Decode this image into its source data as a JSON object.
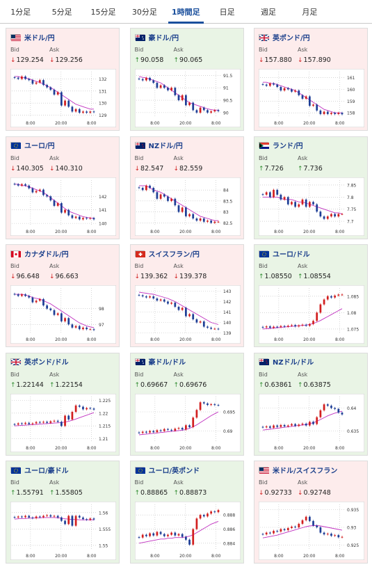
{
  "tabs": [
    {
      "label": "1分足",
      "active": false
    },
    {
      "label": "5分足",
      "active": false
    },
    {
      "label": "15分足",
      "active": false
    },
    {
      "label": "30分足",
      "active": false
    },
    {
      "label": "1時間足",
      "active": true
    },
    {
      "label": "日足",
      "active": false
    },
    {
      "label": "週足",
      "active": false
    },
    {
      "label": "月足",
      "active": false
    }
  ],
  "labels": {
    "bid": "Bid",
    "ask": "Ask"
  },
  "colors": {
    "down_bg": "#fdecec",
    "up_bg": "#e9f4e5",
    "candle_up": "#d21f1f",
    "candle_down": "#1e3e96",
    "ma": "#c030c0",
    "trend_down": "#d21f1f",
    "trend_up": "#2e8b2e"
  },
  "cards": [
    {
      "name": "米ドル/円",
      "flag": "us",
      "trend": "down",
      "bid": "129.254",
      "ask": "129.256",
      "chart_data": {
        "type": "candlestick",
        "yticks": [
          "132",
          "131",
          "130",
          "129"
        ],
        "ylim": [
          128.8,
          132.6
        ],
        "xticks": [
          "8:00",
          "20:00",
          "8:00"
        ],
        "series": [
          132.1,
          132.0,
          132.2,
          132.0,
          131.9,
          131.6,
          131.7,
          131.9,
          131.5,
          131.3,
          131.1,
          130.7,
          130.9,
          129.8,
          130.2,
          129.7,
          129.3,
          129.5,
          129.2,
          129.3,
          129.2,
          129.3,
          129.25
        ],
        "ma": [
          132.2,
          132.2,
          132.1,
          132.1,
          132.0,
          131.9,
          131.8,
          131.7,
          131.6,
          131.4,
          131.3,
          131.1,
          130.9,
          130.7,
          130.5,
          130.3,
          130.1,
          129.9,
          129.8,
          129.7,
          129.6,
          129.5,
          129.5
        ]
      }
    },
    {
      "name": "豪ドル/円",
      "flag": "au",
      "trend": "up",
      "bid": "90.058",
      "ask": "90.065",
      "chart_data": {
        "type": "candlestick",
        "yticks": [
          "91.5",
          "91",
          "90.5",
          "90"
        ],
        "ylim": [
          89.8,
          91.65
        ],
        "xticks": [
          "8:00",
          "20:00",
          "8:00"
        ],
        "series": [
          91.35,
          91.3,
          91.4,
          91.3,
          91.2,
          91.0,
          91.1,
          91.0,
          90.9,
          91.0,
          90.7,
          90.5,
          90.7,
          90.3,
          90.4,
          90.1,
          90.0,
          90.2,
          90.1,
          90.0,
          90.05,
          90.1,
          90.06
        ],
        "ma": [
          91.45,
          91.42,
          91.4,
          91.35,
          91.3,
          91.25,
          91.2,
          91.1,
          91.0,
          90.9,
          90.8,
          90.7,
          90.6,
          90.5,
          90.4,
          90.35,
          90.3,
          90.25,
          90.2,
          90.15,
          90.12,
          90.1,
          90.1
        ]
      }
    },
    {
      "name": "英ポンド/円",
      "flag": "gb",
      "trend": "down",
      "bid": "157.880",
      "ask": "157.890",
      "chart_data": {
        "type": "candlestick",
        "yticks": [
          "161",
          "160",
          "159",
          "158"
        ],
        "ylim": [
          157.6,
          161.5
        ],
        "xticks": [
          "8:00",
          "20:00",
          "8:00"
        ],
        "series": [
          160.4,
          160.3,
          160.5,
          160.4,
          160.2,
          159.9,
          160.1,
          160.0,
          159.8,
          159.9,
          159.5,
          159.2,
          159.4,
          158.6,
          158.7,
          158.2,
          157.9,
          158.1,
          157.9,
          158.0,
          157.9,
          158.0,
          157.88
        ],
        "ma": [
          160.6,
          160.6,
          160.5,
          160.5,
          160.4,
          160.3,
          160.2,
          160.1,
          160.0,
          159.9,
          159.7,
          159.5,
          159.3,
          159.1,
          158.9,
          158.7,
          158.5,
          158.3,
          158.2,
          158.1,
          158.0,
          158.0,
          158.0
        ]
      }
    },
    {
      "name": "ユーロ/円",
      "flag": "eu",
      "trend": "down",
      "bid": "140.305",
      "ask": "140.310",
      "chart_data": {
        "type": "candlestick",
        "yticks": [
          "142",
          "141",
          "140"
        ],
        "ylim": [
          139.8,
          143.2
        ],
        "xticks": [
          "8:00",
          "20:00",
          "8:00"
        ],
        "series": [
          142.9,
          142.8,
          142.9,
          142.8,
          142.6,
          142.3,
          142.4,
          142.5,
          142.1,
          142.0,
          141.7,
          141.3,
          141.5,
          140.8,
          141.0,
          140.6,
          140.4,
          140.5,
          140.3,
          140.4,
          140.35,
          140.4,
          140.3
        ],
        "ma": [
          142.9,
          142.9,
          142.8,
          142.8,
          142.7,
          142.6,
          142.5,
          142.4,
          142.3,
          142.1,
          141.9,
          141.7,
          141.5,
          141.3,
          141.1,
          140.9,
          140.8,
          140.7,
          140.6,
          140.5,
          140.45,
          140.4,
          140.4
        ]
      }
    },
    {
      "name": "NZドル/円",
      "flag": "nz",
      "trend": "down",
      "bid": "82.547",
      "ask": "82.559",
      "chart_data": {
        "type": "candlestick",
        "yticks": [
          "84",
          "83.5",
          "83",
          "82.5"
        ],
        "ylim": [
          82.35,
          84.45
        ],
        "xticks": [
          "8:00",
          "20:00",
          "8:00"
        ],
        "series": [
          84.1,
          84.0,
          84.2,
          84.1,
          83.9,
          83.6,
          83.8,
          83.7,
          83.5,
          83.6,
          83.3,
          83.0,
          83.2,
          82.8,
          82.9,
          82.7,
          82.6,
          82.7,
          82.55,
          82.6,
          82.5,
          82.55,
          82.55
        ],
        "ma": [
          84.2,
          84.2,
          84.2,
          84.1,
          84.0,
          83.95,
          83.9,
          83.8,
          83.7,
          83.6,
          83.5,
          83.4,
          83.3,
          83.2,
          83.1,
          83.0,
          82.9,
          82.8,
          82.75,
          82.7,
          82.65,
          82.6,
          82.6
        ]
      }
    },
    {
      "name": "ランド/円",
      "flag": "za",
      "trend": "up",
      "bid": "7.726",
      "ask": "7.736",
      "chart_data": {
        "type": "candlestick",
        "yticks": [
          "7.85",
          "7.8",
          "7.75",
          "7.7"
        ],
        "ylim": [
          7.68,
          7.87
        ],
        "xticks": [
          "8:00",
          "20:00",
          "8:00"
        ],
        "series": [
          7.81,
          7.82,
          7.8,
          7.83,
          7.81,
          7.79,
          7.8,
          7.77,
          7.78,
          7.76,
          7.77,
          7.79,
          7.76,
          7.78,
          7.77,
          7.74,
          7.72,
          7.71,
          7.72,
          7.73,
          7.72,
          7.73,
          7.73
        ],
        "ma": [
          7.8,
          7.8,
          7.8,
          7.8,
          7.8,
          7.795,
          7.79,
          7.79,
          7.79,
          7.785,
          7.78,
          7.78,
          7.775,
          7.77,
          7.765,
          7.76,
          7.755,
          7.75,
          7.745,
          7.74,
          7.735,
          7.735,
          7.73
        ]
      }
    },
    {
      "name": "カナダドル/円",
      "flag": "ca",
      "trend": "down",
      "bid": "96.648",
      "ask": "96.663",
      "chart_data": {
        "type": "candlestick",
        "yticks": [
          "98",
          "97"
        ],
        "ylim": [
          96.4,
          99.3
        ],
        "xticks": [
          "8:00",
          "20:00",
          "8:00"
        ],
        "series": [
          98.9,
          98.8,
          98.9,
          98.8,
          98.7,
          98.4,
          98.5,
          98.6,
          98.2,
          98.0,
          97.9,
          97.6,
          97.7,
          97.2,
          97.4,
          97.0,
          96.8,
          96.9,
          96.7,
          96.8,
          96.7,
          96.7,
          96.65
        ],
        "ma": [
          98.9,
          98.9,
          98.9,
          98.85,
          98.8,
          98.7,
          98.65,
          98.6,
          98.5,
          98.4,
          98.3,
          98.15,
          98.0,
          97.85,
          97.7,
          97.55,
          97.4,
          97.25,
          97.1,
          97.0,
          96.9,
          96.85,
          96.8
        ]
      }
    },
    {
      "name": "スイスフラン/円",
      "flag": "ch",
      "trend": "down",
      "bid": "139.362",
      "ask": "139.378",
      "chart_data": {
        "type": "candlestick",
        "yticks": [
          "143",
          "142",
          "141",
          "140",
          "139"
        ],
        "ylim": [
          138.9,
          143.3
        ],
        "xticks": [
          "8:00",
          "20:00",
          "8:00"
        ],
        "series": [
          142.6,
          142.5,
          142.4,
          142.5,
          142.3,
          142.1,
          142.2,
          142.0,
          141.8,
          141.9,
          141.5,
          141.2,
          141.4,
          140.6,
          140.8,
          140.3,
          140.0,
          140.1,
          139.6,
          139.5,
          139.4,
          139.4,
          139.36
        ],
        "ma": [
          142.9,
          142.85,
          142.8,
          142.75,
          142.7,
          142.6,
          142.5,
          142.4,
          142.3,
          142.15,
          142.0,
          141.8,
          141.6,
          141.4,
          141.2,
          141.0,
          140.8,
          140.6,
          140.4,
          140.2,
          140.0,
          139.9,
          139.8
        ]
      }
    },
    {
      "name": "ユーロ/ドル",
      "flag": "eu",
      "trend": "up",
      "bid": "1.08550",
      "ask": "1.08554",
      "chart_data": {
        "type": "candlestick",
        "yticks": [
          "1.085",
          "1.08",
          "1.075"
        ],
        "ylim": [
          1.0735,
          1.0875
        ],
        "xticks": [
          "8:00",
          "20:00",
          "8:00"
        ],
        "series": [
          1.0755,
          1.0758,
          1.0754,
          1.0757,
          1.0756,
          1.0759,
          1.0757,
          1.076,
          1.0762,
          1.0758,
          1.0761,
          1.0763,
          1.076,
          1.0765,
          1.0775,
          1.08,
          1.0825,
          1.084,
          1.085,
          1.0846,
          1.0852,
          1.0855,
          1.0855
        ],
        "ma": [
          1.075,
          1.0751,
          1.0752,
          1.0753,
          1.0754,
          1.0755,
          1.0756,
          1.0757,
          1.0758,
          1.0759,
          1.076,
          1.0761,
          1.0762,
          1.0764,
          1.0767,
          1.0771,
          1.0776,
          1.0782,
          1.0788,
          1.0794,
          1.08,
          1.0806,
          1.0812
        ]
      }
    },
    {
      "name": "英ポンド/ドル",
      "flag": "gb",
      "trend": "up",
      "bid": "1.22144",
      "ask": "1.22154",
      "chart_data": {
        "type": "candlestick",
        "yticks": [
          "1.225",
          "1.22",
          "1.215",
          "1.21"
        ],
        "ylim": [
          1.2085,
          1.2265
        ],
        "xticks": [
          "8:00",
          "20:00",
          "8:00"
        ],
        "series": [
          1.2155,
          1.216,
          1.2158,
          1.2162,
          1.2157,
          1.216,
          1.2165,
          1.2163,
          1.2166,
          1.2162,
          1.2168,
          1.217,
          1.2166,
          1.215,
          1.219,
          1.2175,
          1.2205,
          1.223,
          1.2225,
          1.2215,
          1.222,
          1.2218,
          1.2214
        ],
        "ma": [
          1.215,
          1.2151,
          1.2152,
          1.2153,
          1.2154,
          1.2155,
          1.2156,
          1.2157,
          1.2158,
          1.2159,
          1.216,
          1.2161,
          1.2162,
          1.2163,
          1.2165,
          1.2168,
          1.2172,
          1.2177,
          1.2182,
          1.2187,
          1.2192,
          1.2197,
          1.2202
        ]
      }
    },
    {
      "name": "豪ドル/ドル",
      "flag": "au",
      "trend": "up",
      "bid": "0.69667",
      "ask": "0.69676",
      "chart_data": {
        "type": "candlestick",
        "yticks": [
          "0.695",
          "0.69"
        ],
        "ylim": [
          0.687,
          0.699
        ],
        "xticks": [
          "8:00",
          "20:00",
          "8:00"
        ],
        "series": [
          0.6895,
          0.6898,
          0.6896,
          0.69,
          0.6897,
          0.6902,
          0.69,
          0.6905,
          0.6903,
          0.6901,
          0.6906,
          0.6908,
          0.6904,
          0.6915,
          0.691,
          0.6935,
          0.6955,
          0.6975,
          0.6972,
          0.6968,
          0.697,
          0.6968,
          0.6967
        ],
        "ma": [
          0.689,
          0.6891,
          0.6892,
          0.6893,
          0.6894,
          0.6895,
          0.6896,
          0.6897,
          0.6898,
          0.6899,
          0.69,
          0.6901,
          0.6902,
          0.6904,
          0.6907,
          0.6911,
          0.6916,
          0.6922,
          0.6928,
          0.6934,
          0.694,
          0.6945,
          0.695
        ]
      }
    },
    {
      "name": "NZドル/ドル",
      "flag": "nz",
      "trend": "up",
      "bid": "0.63861",
      "ask": "0.63875",
      "chart_data": {
        "type": "candlestick",
        "yticks": [
          "0.64",
          "0.635"
        ],
        "ylim": [
          0.6325,
          0.6425
        ],
        "xticks": [
          "8:00",
          "20:00",
          "8:00"
        ],
        "series": [
          0.6358,
          0.636,
          0.6357,
          0.6362,
          0.6359,
          0.6363,
          0.636,
          0.6362,
          0.6365,
          0.6361,
          0.6364,
          0.6366,
          0.6362,
          0.637,
          0.6365,
          0.638,
          0.6395,
          0.6408,
          0.6405,
          0.64,
          0.6398,
          0.639,
          0.6386
        ],
        "ma": [
          0.6352,
          0.6353,
          0.6354,
          0.6355,
          0.6356,
          0.6357,
          0.6358,
          0.6359,
          0.636,
          0.6361,
          0.6362,
          0.6363,
          0.6364,
          0.6366,
          0.6368,
          0.6371,
          0.6375,
          0.6379,
          0.6383,
          0.6386,
          0.6389,
          0.6391,
          0.6393
        ]
      }
    },
    {
      "name": "ユーロ/豪ドル",
      "flag": "eu",
      "trend": "up",
      "bid": "1.55791",
      "ask": "1.55805",
      "chart_data": {
        "type": "candlestick",
        "yticks": [
          "1.56",
          "1.555",
          "1.55"
        ],
        "ylim": [
          1.5485,
          1.5625
        ],
        "xticks": [
          "8:00",
          "20:00",
          "8:00"
        ],
        "series": [
          1.5585,
          1.5588,
          1.5586,
          1.559,
          1.5585,
          1.5583,
          1.5588,
          1.5586,
          1.559,
          1.5592,
          1.5588,
          1.559,
          1.5585,
          1.5575,
          1.5565,
          1.559,
          1.556,
          1.559,
          1.5585,
          1.558,
          1.5578,
          1.5582,
          1.5579
        ],
        "ma": [
          1.558,
          1.5581,
          1.5582,
          1.5582,
          1.5583,
          1.5583,
          1.5584,
          1.5584,
          1.5585,
          1.5585,
          1.5585,
          1.5585,
          1.5584,
          1.5583,
          1.5581,
          1.558,
          1.5579,
          1.5579,
          1.5578,
          1.5578,
          1.5578,
          1.5578,
          1.5578
        ]
      }
    },
    {
      "name": "ユーロ/英ポンド",
      "flag": "eu",
      "trend": "up",
      "bid": "0.88865",
      "ask": "0.88873",
      "chart_data": {
        "type": "candlestick",
        "yticks": [
          "0.888",
          "0.886",
          "0.884"
        ],
        "ylim": [
          0.883,
          0.8895
        ],
        "xticks": [
          "8:00",
          "20:00",
          "8:00"
        ],
        "series": [
          0.8848,
          0.8852,
          0.885,
          0.8854,
          0.8851,
          0.8856,
          0.8853,
          0.885,
          0.8852,
          0.8855,
          0.8851,
          0.8853,
          0.8849,
          0.8845,
          0.8838,
          0.886,
          0.8875,
          0.888,
          0.8878,
          0.8882,
          0.8885,
          0.8884,
          0.8887
        ],
        "ma": [
          0.884,
          0.8841,
          0.8842,
          0.8843,
          0.8844,
          0.8845,
          0.8846,
          0.8846,
          0.8847,
          0.8847,
          0.8848,
          0.8848,
          0.8848,
          0.8849,
          0.885,
          0.8852,
          0.8855,
          0.8858,
          0.8861,
          0.8864,
          0.8867,
          0.8869,
          0.8871
        ]
      }
    },
    {
      "name": "米ドル/スイスフラン",
      "flag": "us",
      "trend": "down",
      "bid": "0.92733",
      "ask": "0.92748",
      "chart_data": {
        "type": "candlestick",
        "yticks": [
          "0.935",
          "0.93",
          "0.925"
        ],
        "ylim": [
          0.9235,
          0.9365
        ],
        "xticks": [
          "8:00",
          "20:00",
          "8:00"
        ],
        "series": [
          0.928,
          0.9285,
          0.9283,
          0.929,
          0.9288,
          0.9295,
          0.9292,
          0.9298,
          0.9302,
          0.93,
          0.931,
          0.932,
          0.933,
          0.9318,
          0.9305,
          0.93,
          0.9285,
          0.928,
          0.9282,
          0.9276,
          0.9278,
          0.9272,
          0.9273
        ],
        "ma": [
          0.927,
          0.9272,
          0.9274,
          0.9276,
          0.9278,
          0.9281,
          0.9284,
          0.9287,
          0.929,
          0.9293,
          0.9296,
          0.9299,
          0.9302,
          0.9304,
          0.9305,
          0.9305,
          0.9304,
          0.9302,
          0.93,
          0.9298,
          0.9296,
          0.9294,
          0.9292
        ]
      }
    }
  ]
}
